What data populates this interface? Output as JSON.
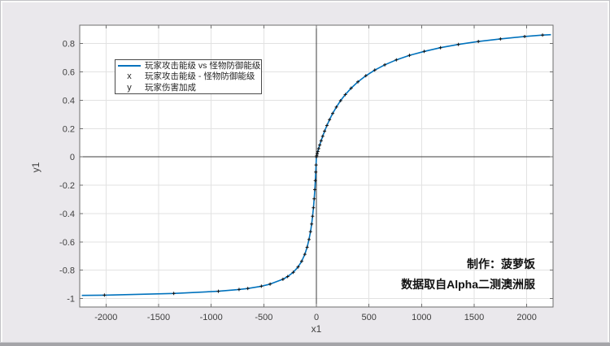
{
  "figure": {
    "background": "#EAE8EC",
    "plot_background": "#FFFFFF"
  },
  "annotations": {
    "credit": "制作：菠萝饭",
    "source": "数据取自Alpha二测澳洲服"
  },
  "legend": {
    "items": [
      {
        "type": "line",
        "key": "",
        "label": "玩家攻击能级 vs 怪物防御能级"
      },
      {
        "type": "key",
        "key": "x",
        "label": "玩家攻击能级 - 怪物防御能级"
      },
      {
        "type": "key",
        "key": "y",
        "label": "玩家伤害加成"
      }
    ]
  },
  "chart_data": {
    "type": "line",
    "title": "",
    "xlabel": "x1",
    "ylabel": "y1",
    "xlim": [
      -2250,
      2250
    ],
    "ylim": [
      -1.06,
      0.93
    ],
    "x_ticks": [
      -2000,
      -1500,
      -1000,
      -500,
      0,
      500,
      1000,
      1500,
      2000
    ],
    "y_ticks": [
      -1,
      -0.8,
      -0.6,
      -0.4,
      -0.2,
      0,
      0.2,
      0.4,
      0.6,
      0.8
    ],
    "grid": true,
    "zero_lines": true,
    "legend_position": "northwest-inside",
    "line_color": "#0072BD",
    "marker_color": "#141414",
    "grid_color": "#e2e2e2",
    "axis_color": "#6e6e6e",
    "zero_line_color": "#3c3c3c",
    "tick_label_color": "#3f3f3f",
    "line_extension": {
      "start": [
        -2230,
        -0.978
      ],
      "end": [
        2230,
        0.863
      ]
    },
    "series": [
      {
        "name": "玩家攻击能级 vs 怪物防御能级",
        "points": [
          [
            -2015,
            -0.976
          ],
          [
            -1356,
            -0.964
          ],
          [
            -932,
            -0.949
          ],
          [
            -735,
            -0.936
          ],
          [
            -652,
            -0.929
          ],
          [
            -523,
            -0.913
          ],
          [
            -440,
            -0.898
          ],
          [
            -318,
            -0.864
          ],
          [
            -273,
            -0.845
          ],
          [
            -220,
            -0.815
          ],
          [
            -174,
            -0.777
          ],
          [
            -140,
            -0.737
          ],
          [
            -110,
            -0.688
          ],
          [
            -88,
            -0.638
          ],
          [
            -70,
            -0.583
          ],
          [
            -56,
            -0.528
          ],
          [
            -45,
            -0.474
          ],
          [
            -36,
            -0.419
          ],
          [
            -28,
            -0.359
          ],
          [
            -21,
            -0.296
          ],
          [
            -15,
            -0.231
          ],
          [
            -10,
            -0.167
          ],
          [
            -6,
            -0.107
          ],
          [
            -3,
            -0.057
          ],
          [
            0,
            0
          ],
          [
            3,
            0.008
          ],
          [
            8,
            0.022
          ],
          [
            14,
            0.038
          ],
          [
            22,
            0.059
          ],
          [
            32,
            0.084
          ],
          [
            45,
            0.114
          ],
          [
            60,
            0.146
          ],
          [
            78,
            0.182
          ],
          [
            100,
            0.222
          ],
          [
            125,
            0.263
          ],
          [
            155,
            0.307
          ],
          [
            190,
            0.352
          ],
          [
            230,
            0.397
          ],
          [
            275,
            0.44
          ],
          [
            330,
            0.485
          ],
          [
            395,
            0.53
          ],
          [
            470,
            0.573
          ],
          [
            555,
            0.613
          ],
          [
            650,
            0.65
          ],
          [
            760,
            0.685
          ],
          [
            885,
            0.717
          ],
          [
            1025,
            0.745
          ],
          [
            1180,
            0.771
          ],
          [
            1350,
            0.794
          ],
          [
            1540,
            0.815
          ],
          [
            1750,
            0.833
          ],
          [
            1980,
            0.85
          ],
          [
            2150,
            0.86
          ]
        ]
      }
    ]
  }
}
